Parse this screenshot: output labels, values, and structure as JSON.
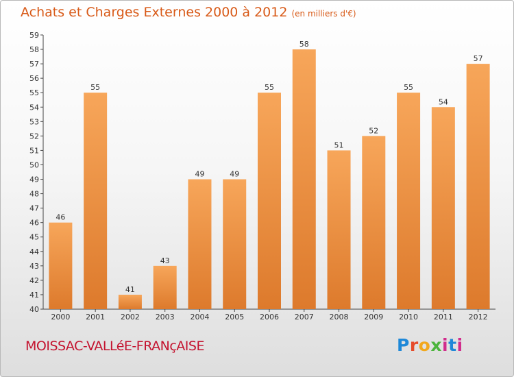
{
  "header": {
    "title": "Achats et Charges Externes 2000 à 2012",
    "unit": "(en milliers d'€)"
  },
  "footer": {
    "city": "MOISSAC-VALLéE-FRANçAISE",
    "brand": [
      "P",
      "r",
      "o",
      "x",
      "i",
      "t",
      "i"
    ]
  },
  "colors": {
    "title": "#d85a18",
    "bar_light": "#f7a65a",
    "bar_dark": "#dd7a2c",
    "city": "#c4122e"
  },
  "chart_data": {
    "type": "bar",
    "title": "Achats et Charges Externes 2000 à 2012",
    "categories": [
      "2000",
      "2001",
      "2002",
      "2003",
      "2004",
      "2005",
      "2006",
      "2007",
      "2008",
      "2009",
      "2010",
      "2011",
      "2012"
    ],
    "values": [
      46,
      55,
      41,
      43,
      49,
      49,
      55,
      58,
      51,
      52,
      55,
      54,
      57
    ],
    "ylim": [
      40,
      59
    ],
    "yticks": [
      40,
      41,
      42,
      43,
      44,
      45,
      46,
      47,
      48,
      49,
      50,
      51,
      52,
      53,
      54,
      55,
      56,
      57,
      58,
      59
    ],
    "grid": false,
    "data_labels": true
  }
}
